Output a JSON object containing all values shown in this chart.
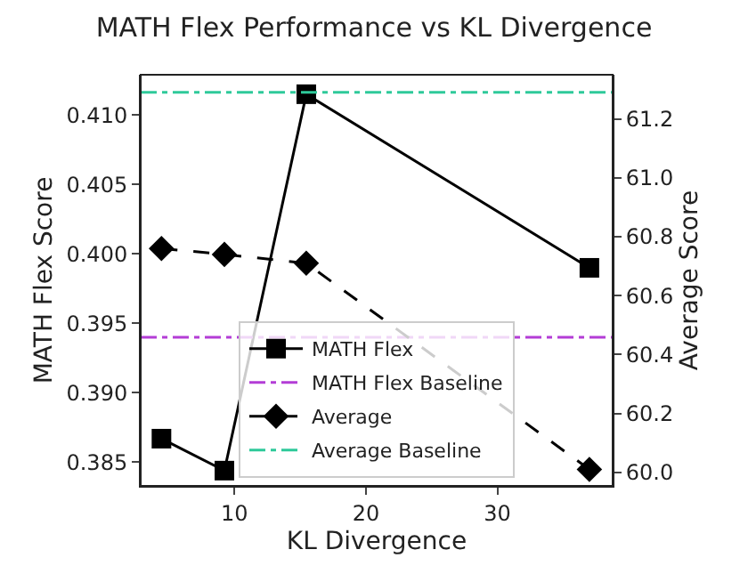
{
  "chart_data": {
    "type": "line",
    "title": "MATH Flex Performance vs KL Divergence",
    "xlabel": "KL Divergence",
    "ylabel": "MATH Flex Score",
    "y2label": "Average Score",
    "series": [
      {
        "name": "MATH Flex",
        "color": "#000000",
        "x": [
          4.44,
          9.23,
          15.46,
          37.0
        ],
        "values": [
          0.3867,
          0.3844,
          0.4115,
          0.399
        ],
        "marker": "square",
        "line_style": "solid"
      },
      {
        "name": "Average",
        "color": "#000000",
        "x": [
          4.44,
          9.23,
          15.46,
          37.0
        ],
        "values": [
          60.76,
          60.74,
          60.71,
          60.01
        ],
        "marker": "diamond",
        "line_style": "dashed",
        "axis": "y2"
      }
    ],
    "ref_lines": [
      {
        "axis": "y",
        "value": 0.394,
        "label": "MATH Flex Baseline",
        "color": "#b33dd6",
        "line_style": "dashdot"
      },
      {
        "axis": "y2",
        "value": 61.29,
        "label": "Average Baseline",
        "color": "#2ec99a",
        "line_style": "dashdot"
      }
    ],
    "xlim": [
      2.86,
      38.77
    ],
    "xticks": [
      10,
      20,
      30
    ],
    "ylim": [
      0.3833,
      0.4129
    ],
    "yticks": [
      0.385,
      {
        "value": 0.39,
        "label": "0.390"
      },
      0.395,
      {
        "value": 0.4,
        "label": "0.400"
      },
      0.405,
      {
        "value": 0.41,
        "label": "0.410"
      }
    ],
    "y2lim": [
      59.954,
      61.35
    ],
    "y2ticks": [
      {
        "value": 60,
        "label": "60.0"
      },
      60.2,
      60.4,
      60.6,
      60.8,
      {
        "value": 61,
        "label": "61.0"
      },
      61.2
    ],
    "legend": "bottom"
  }
}
